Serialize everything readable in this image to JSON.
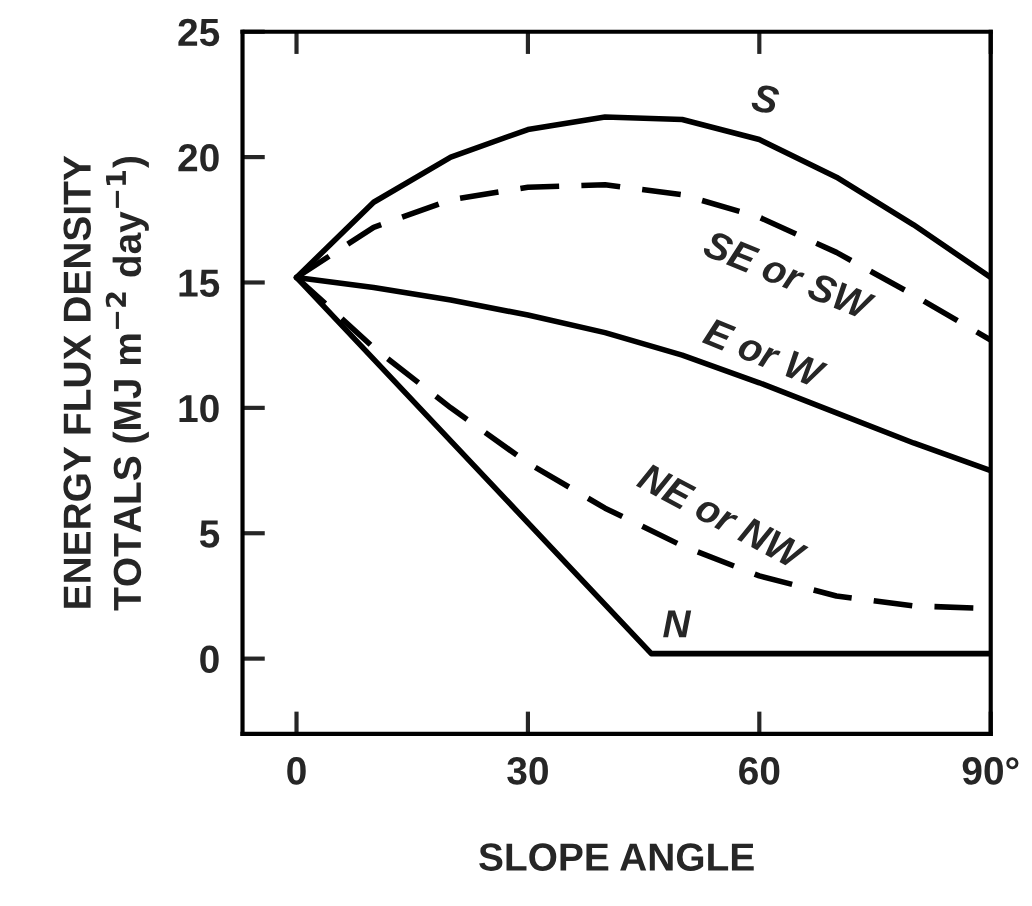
{
  "chart_data": {
    "type": "line",
    "xlabel": "SLOPE ANGLE",
    "ylabel": "ENERGY FLUX DENSITY\nTOTALS (MJ m$^{−2}$ day$^{−1}$)",
    "xlim": [
      -7,
      90
    ],
    "ylim": [
      -3,
      25
    ],
    "xticks": [
      0,
      30,
      60,
      {
        "value": 90,
        "label": "90°"
      }
    ],
    "yticks": [
      0,
      5,
      10,
      15,
      20,
      25
    ],
    "grid": false,
    "legend": false,
    "marker": "none",
    "series": [
      {
        "name": "S",
        "color": "#000000",
        "line_style": "solid",
        "x": [
          0,
          10,
          20,
          30,
          40,
          50,
          60,
          70,
          80,
          90
        ],
        "values": [
          15.2,
          18.2,
          20.0,
          21.1,
          21.6,
          21.5,
          20.7,
          19.2,
          17.3,
          15.2
        ]
      },
      {
        "name": "SE or SW",
        "color": "#000000",
        "line_style": "dashed",
        "x": [
          0,
          10,
          20,
          30,
          40,
          50,
          60,
          70,
          80,
          90
        ],
        "values": [
          15.2,
          17.2,
          18.3,
          18.8,
          18.9,
          18.5,
          17.6,
          16.2,
          14.5,
          12.7
        ]
      },
      {
        "name": "E or W",
        "color": "#000000",
        "line_style": "solid",
        "x": [
          0,
          10,
          20,
          30,
          40,
          50,
          60,
          70,
          80,
          90
        ],
        "values": [
          15.2,
          14.8,
          14.3,
          13.7,
          13.0,
          12.1,
          11.0,
          9.8,
          8.6,
          7.5
        ]
      },
      {
        "name": "NE or NW",
        "color": "#000000",
        "line_style": "dashed",
        "x": [
          0,
          10,
          20,
          30,
          40,
          50,
          60,
          70,
          80,
          90
        ],
        "values": [
          15.2,
          12.4,
          10.0,
          7.8,
          6.0,
          4.5,
          3.3,
          2.5,
          2.1,
          2.0
        ]
      },
      {
        "name": "N",
        "color": "#000000",
        "line_style": "solid",
        "x": [
          0,
          46,
          90
        ],
        "values": [
          15.2,
          0.2,
          0.2
        ]
      }
    ]
  }
}
